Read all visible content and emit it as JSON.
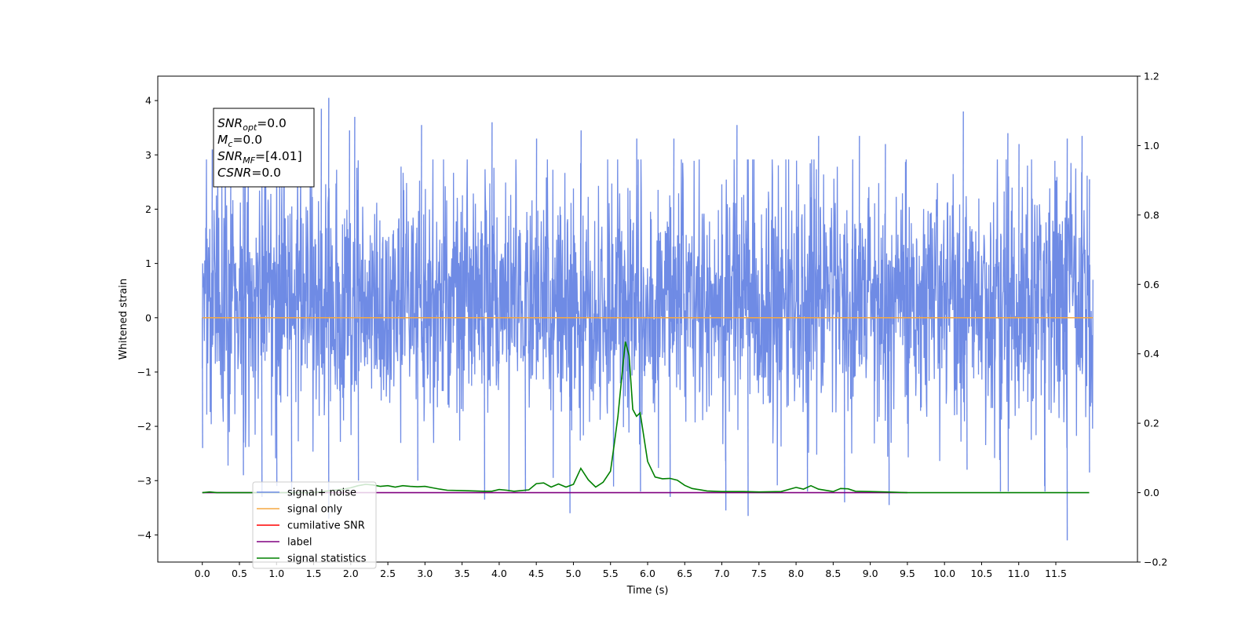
{
  "chart_data": {
    "type": "line",
    "xlabel": "Time (s)",
    "ylabel": "Whitened strain",
    "x_ticks": [
      "0.0",
      "0.5",
      "1.0",
      "1.5",
      "2.0",
      "2.5",
      "3.0",
      "3.5",
      "4.0",
      "4.5",
      "5.0",
      "5.5",
      "6.0",
      "6.5",
      "7.0",
      "7.5",
      "8.0",
      "8.5",
      "9.0",
      "9.5",
      "10.0",
      "10.5",
      "11.0",
      "11.5"
    ],
    "xlim": [
      -0.6,
      12.6
    ],
    "ylim_left": [
      -4.5,
      4.45
    ],
    "y_ticks_left": [
      "-4",
      "-3",
      "-2",
      "-1",
      "0",
      "1",
      "2",
      "3",
      "4"
    ],
    "ylim_right": [
      -0.2,
      1.2
    ],
    "y_ticks_right": [
      "-0.2",
      "0.0",
      "0.2",
      "0.4",
      "0.6",
      "0.8",
      "1.0",
      "1.2"
    ],
    "legend_placement": "lower-left",
    "annotation": {
      "lines": [
        {
          "base": "SNR",
          "sub": "opt",
          "rest": "=0.0"
        },
        {
          "base": "M",
          "sub": "c",
          "rest": "=0.0"
        },
        {
          "base": "SNR",
          "sub": "MF",
          "rest": "=[4.01]"
        },
        {
          "base": "CSNR",
          "sub": "",
          "rest": "=0.0"
        }
      ]
    },
    "series": [
      {
        "name": "signal+ noise",
        "axis": "left",
        "color": "#6f8be5",
        "x_range": [
          0.0,
          12.0
        ],
        "envelope": {
          "typical": [
            -1.8,
            2.4
          ],
          "extremes": [
            -4.1,
            4.05
          ]
        },
        "peaks_up": [
          [
            0.13,
            3.1
          ],
          [
            0.38,
            3.1
          ],
          [
            0.55,
            3.0
          ],
          [
            1.04,
            3.2
          ],
          [
            1.1,
            3.3
          ],
          [
            1.6,
            3.85
          ],
          [
            1.7,
            4.05
          ],
          [
            1.98,
            3.45
          ],
          [
            2.05,
            3.7
          ],
          [
            2.95,
            3.55
          ],
          [
            3.9,
            3.6
          ],
          [
            4.5,
            3.3
          ],
          [
            5.1,
            3.45
          ],
          [
            5.85,
            3.3
          ],
          [
            6.35,
            3.3
          ],
          [
            7.2,
            3.55
          ],
          [
            8.3,
            3.35
          ],
          [
            8.85,
            3.35
          ],
          [
            9.2,
            3.2
          ],
          [
            10.25,
            3.8
          ],
          [
            10.85,
            3.4
          ],
          [
            11.0,
            3.2
          ],
          [
            11.65,
            3.3
          ],
          [
            11.85,
            3.35
          ],
          [
            11.95,
            2.55
          ]
        ],
        "peaks_down": [
          [
            0.0,
            -2.4
          ],
          [
            0.55,
            -2.9
          ],
          [
            0.8,
            -3.3
          ],
          [
            1.0,
            -3.1
          ],
          [
            1.2,
            -3.3
          ],
          [
            1.7,
            -3.7
          ],
          [
            2.1,
            -3.0
          ],
          [
            2.9,
            -3.0
          ],
          [
            3.8,
            -3.35
          ],
          [
            4.35,
            -3.2
          ],
          [
            4.95,
            -3.6
          ],
          [
            5.9,
            -3.2
          ],
          [
            6.3,
            -3.3
          ],
          [
            7.05,
            -3.55
          ],
          [
            7.35,
            -3.65
          ],
          [
            8.15,
            -3.2
          ],
          [
            8.65,
            -3.4
          ],
          [
            9.25,
            -3.45
          ],
          [
            10.3,
            -2.8
          ],
          [
            10.75,
            -3.2
          ],
          [
            11.35,
            -3.2
          ],
          [
            11.65,
            -4.1
          ],
          [
            11.95,
            -2.85
          ]
        ]
      },
      {
        "name": "signal only",
        "axis": "left",
        "color": "#f5a942",
        "x": [
          0.0,
          12.0
        ],
        "y": [
          0.0,
          0.0
        ]
      },
      {
        "name": "cumilative SNR",
        "axis": "right",
        "color": "#ff0000",
        "x": [],
        "y": []
      },
      {
        "name": "label",
        "axis": "right",
        "color": "#800080",
        "x": [
          0.0,
          9.5
        ],
        "y": [
          0.0,
          0.0
        ]
      },
      {
        "name": "signal statistics",
        "axis": "right",
        "color": "#008000",
        "x": [
          0.0,
          0.1,
          0.2,
          0.5,
          1.0,
          1.5,
          1.9,
          2.0,
          2.1,
          2.2,
          2.3,
          2.4,
          2.5,
          2.6,
          2.7,
          2.8,
          2.9,
          3.0,
          3.1,
          3.2,
          3.3,
          3.5,
          3.8,
          3.9,
          4.0,
          4.1,
          4.2,
          4.4,
          4.5,
          4.6,
          4.7,
          4.8,
          4.9,
          5.0,
          5.1,
          5.2,
          5.3,
          5.4,
          5.5,
          5.55,
          5.6,
          5.65,
          5.7,
          5.75,
          5.8,
          5.85,
          5.9,
          6.0,
          6.1,
          6.2,
          6.3,
          6.4,
          6.5,
          6.6,
          6.8,
          7.0,
          7.3,
          7.5,
          7.8,
          8.0,
          8.1,
          8.2,
          8.3,
          8.5,
          8.6,
          8.7,
          8.8,
          9.0,
          9.2,
          9.5,
          10.0,
          11.0,
          11.95
        ],
        "y": [
          0.0,
          0.002,
          0.0,
          0.0,
          0.0,
          0.0,
          0.01,
          0.014,
          0.02,
          0.024,
          0.022,
          0.018,
          0.02,
          0.016,
          0.02,
          0.018,
          0.017,
          0.018,
          0.014,
          0.01,
          0.007,
          0.006,
          0.004,
          0.004,
          0.009,
          0.007,
          0.004,
          0.008,
          0.026,
          0.028,
          0.016,
          0.025,
          0.016,
          0.024,
          0.07,
          0.037,
          0.016,
          0.03,
          0.062,
          0.14,
          0.22,
          0.33,
          0.435,
          0.395,
          0.24,
          0.22,
          0.23,
          0.09,
          0.045,
          0.04,
          0.041,
          0.036,
          0.021,
          0.012,
          0.005,
          0.003,
          0.003,
          0.002,
          0.003,
          0.015,
          0.01,
          0.02,
          0.01,
          0.003,
          0.012,
          0.011,
          0.004,
          0.003,
          0.002,
          0.0,
          0.0,
          0.0,
          0.0
        ]
      }
    ]
  }
}
